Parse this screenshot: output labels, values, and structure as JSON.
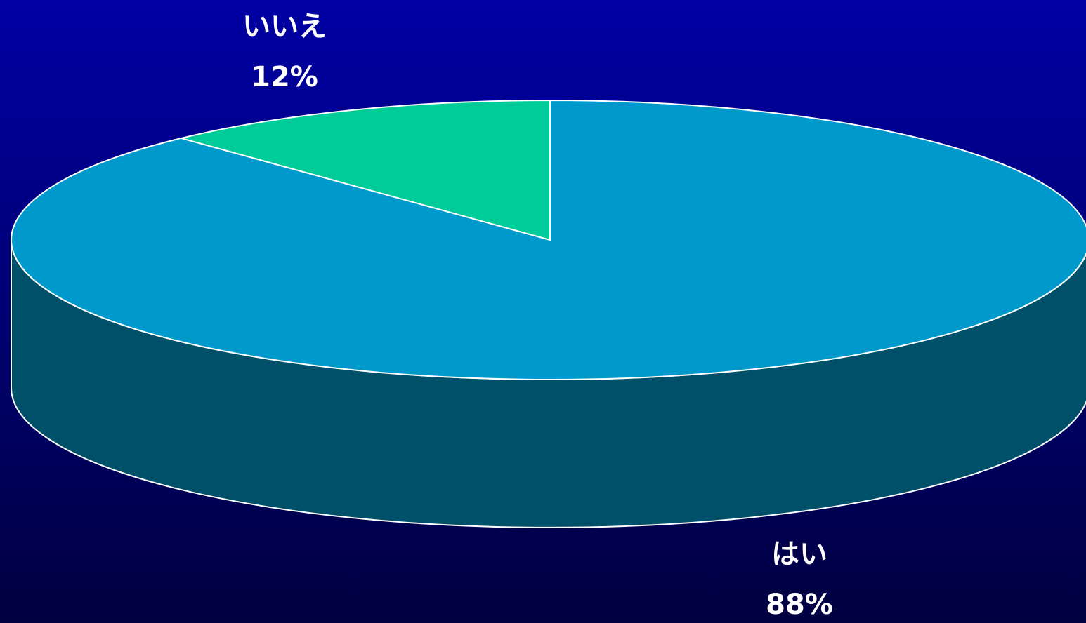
{
  "chart_data": {
    "type": "pie3d",
    "categories": [
      "はい",
      "いいえ"
    ],
    "values": [
      88,
      12
    ],
    "value_labels": [
      "88%",
      "12%"
    ],
    "colors": [
      "#0099cc",
      "#00cc99"
    ]
  }
}
